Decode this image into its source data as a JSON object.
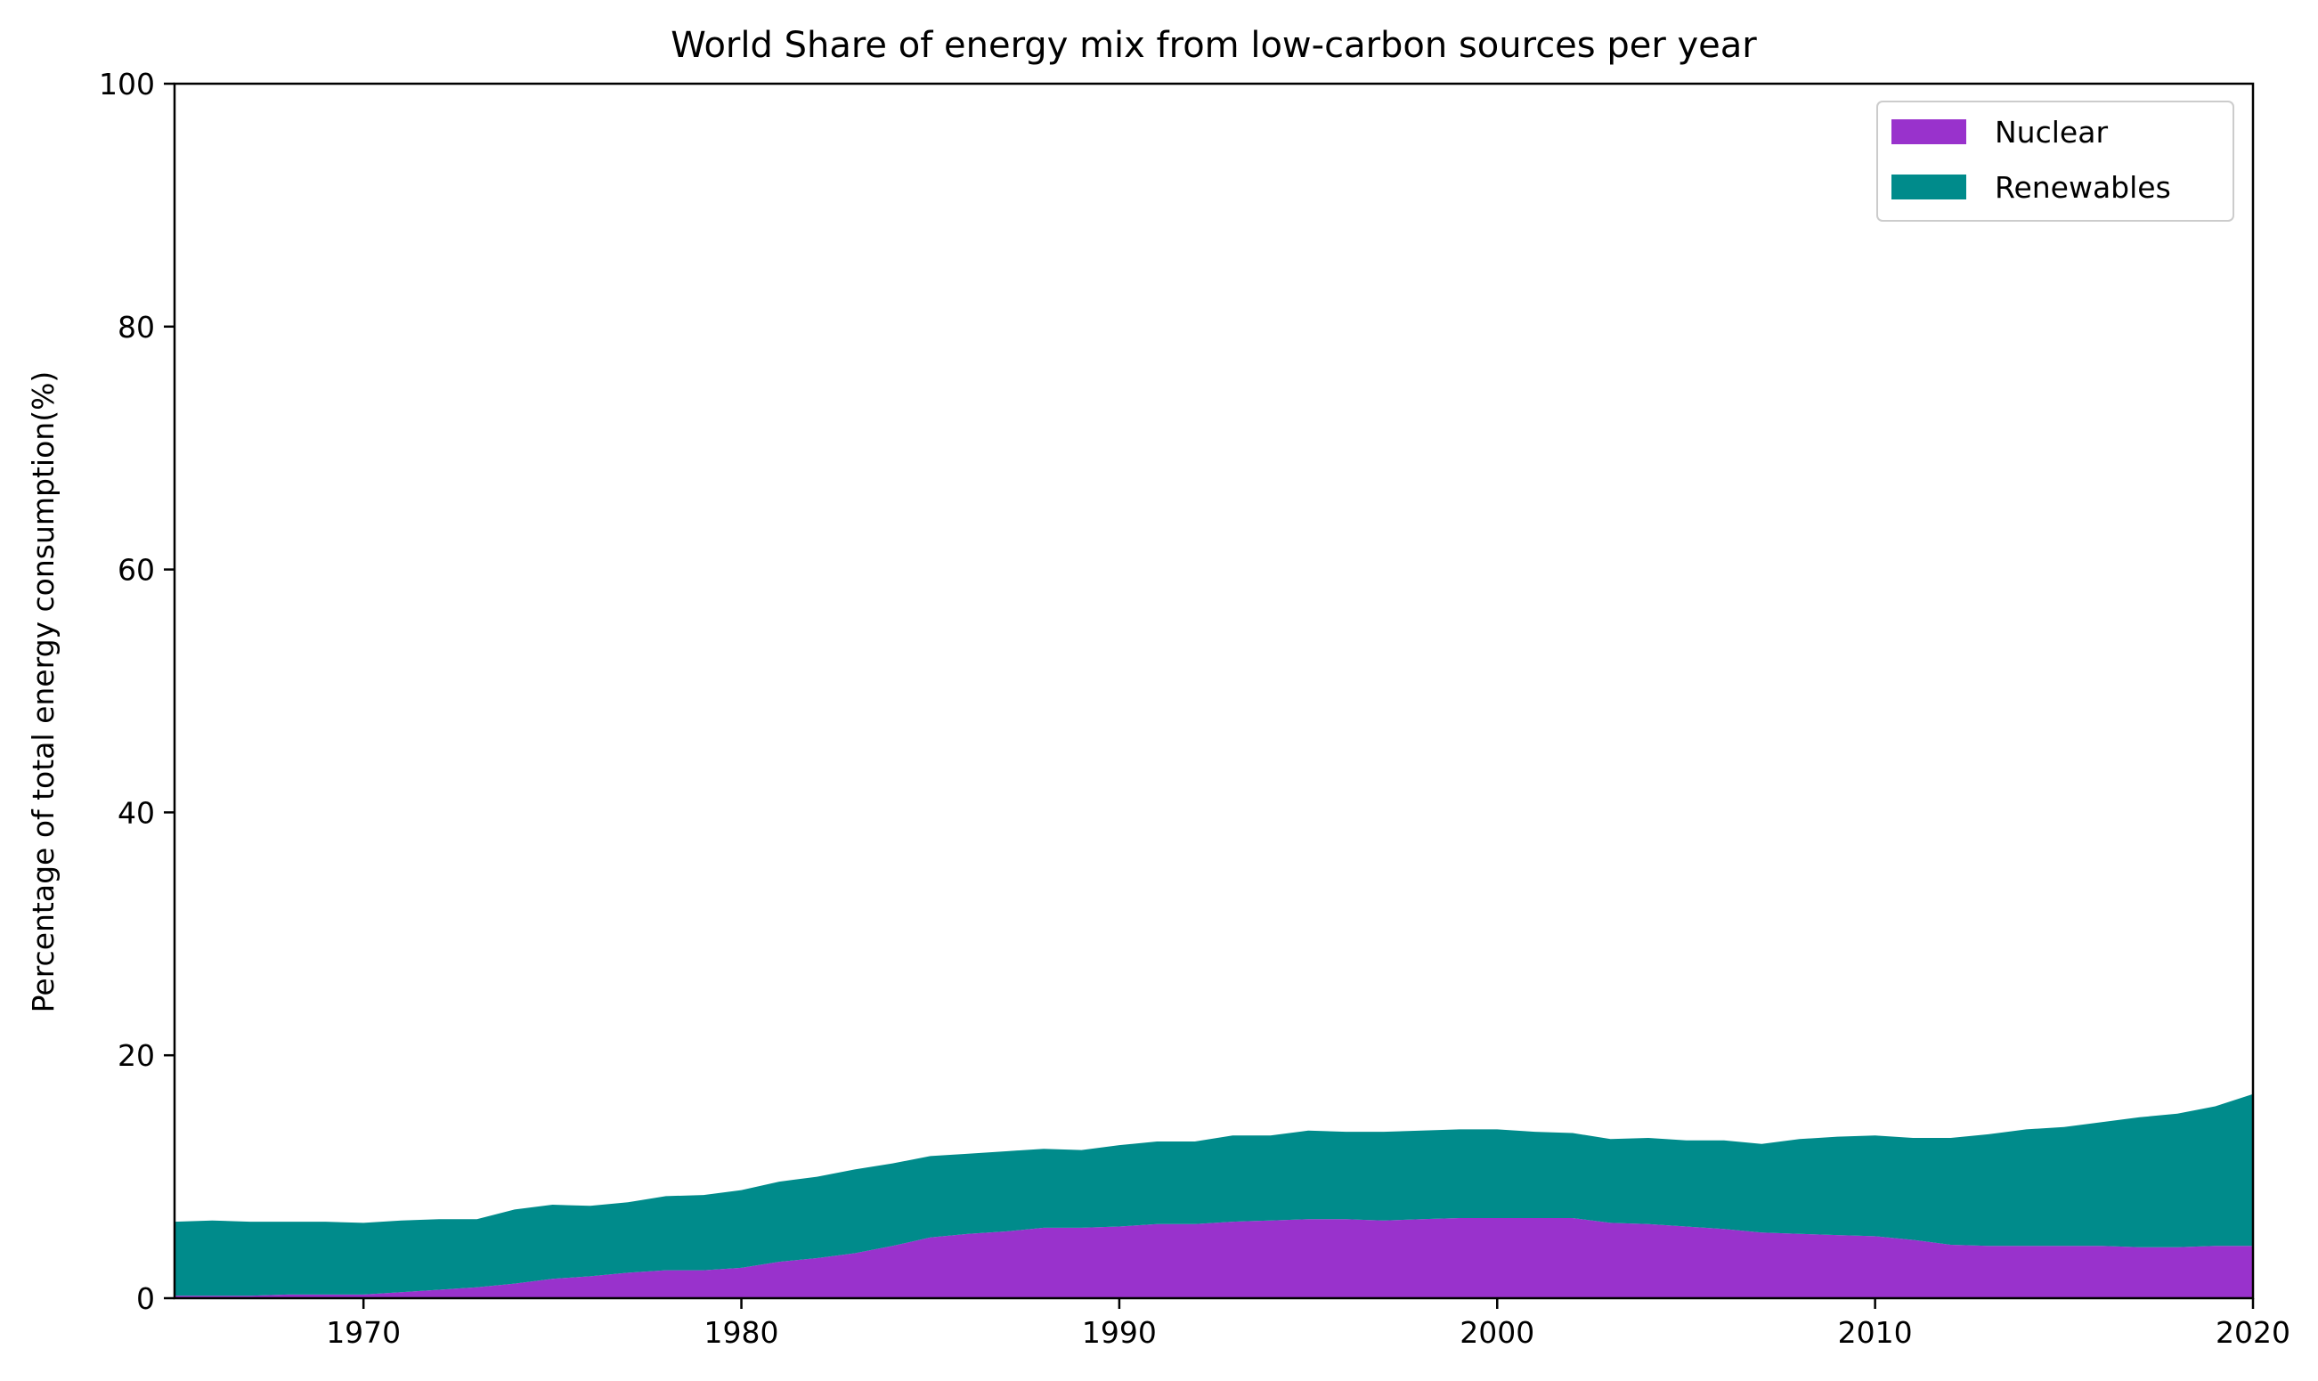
{
  "chart_data": {
    "type": "area",
    "stacked": true,
    "title": "World Share of energy mix from low-carbon sources per year",
    "xlabel": "",
    "ylabel": "Percentage of total energy consumption(%)",
    "xlim": [
      1965,
      2020
    ],
    "ylim": [
      0,
      100
    ],
    "xticks": [
      1970,
      1980,
      1990,
      2000,
      2010,
      2020
    ],
    "yticks": [
      0,
      20,
      40,
      60,
      80,
      100
    ],
    "grid": false,
    "legend_position": "top-right",
    "x": [
      1965,
      1966,
      1967,
      1968,
      1969,
      1970,
      1971,
      1972,
      1973,
      1974,
      1975,
      1976,
      1977,
      1978,
      1979,
      1980,
      1981,
      1982,
      1983,
      1984,
      1985,
      1986,
      1987,
      1988,
      1989,
      1990,
      1991,
      1992,
      1993,
      1994,
      1995,
      1996,
      1997,
      1998,
      1999,
      2000,
      2001,
      2002,
      2003,
      2004,
      2005,
      2006,
      2007,
      2008,
      2009,
      2010,
      2011,
      2012,
      2013,
      2014,
      2015,
      2016,
      2017,
      2018,
      2019,
      2020
    ],
    "series": [
      {
        "name": "Nuclear",
        "color": "#9932CC",
        "values": [
          0.2,
          0.2,
          0.2,
          0.3,
          0.3,
          0.3,
          0.5,
          0.7,
          0.9,
          1.2,
          1.6,
          1.8,
          2.1,
          2.3,
          2.3,
          2.5,
          3.0,
          3.3,
          3.7,
          4.3,
          5.0,
          5.3,
          5.5,
          5.8,
          5.8,
          5.9,
          6.1,
          6.1,
          6.3,
          6.4,
          6.5,
          6.5,
          6.4,
          6.5,
          6.6,
          6.6,
          6.6,
          6.6,
          6.2,
          6.1,
          5.9,
          5.7,
          5.4,
          5.3,
          5.2,
          5.1,
          4.8,
          4.4,
          4.3,
          4.3,
          4.3,
          4.3,
          4.2,
          4.2,
          4.3,
          4.3
        ]
      },
      {
        "name": "Renewables",
        "color": "#008B8B",
        "values": [
          6.1,
          6.2,
          6.1,
          6.0,
          6.0,
          5.9,
          5.9,
          5.8,
          5.6,
          6.1,
          6.1,
          5.8,
          5.8,
          6.1,
          6.2,
          6.4,
          6.6,
          6.7,
          6.9,
          6.8,
          6.7,
          6.6,
          6.6,
          6.5,
          6.4,
          6.7,
          6.8,
          6.8,
          7.1,
          7.0,
          7.3,
          7.2,
          7.3,
          7.3,
          7.3,
          7.3,
          7.1,
          7.0,
          6.9,
          7.1,
          7.1,
          7.3,
          7.3,
          7.8,
          8.1,
          8.3,
          8.4,
          8.8,
          9.2,
          9.6,
          9.8,
          10.2,
          10.7,
          11.0,
          11.5,
          12.5
        ]
      }
    ]
  }
}
